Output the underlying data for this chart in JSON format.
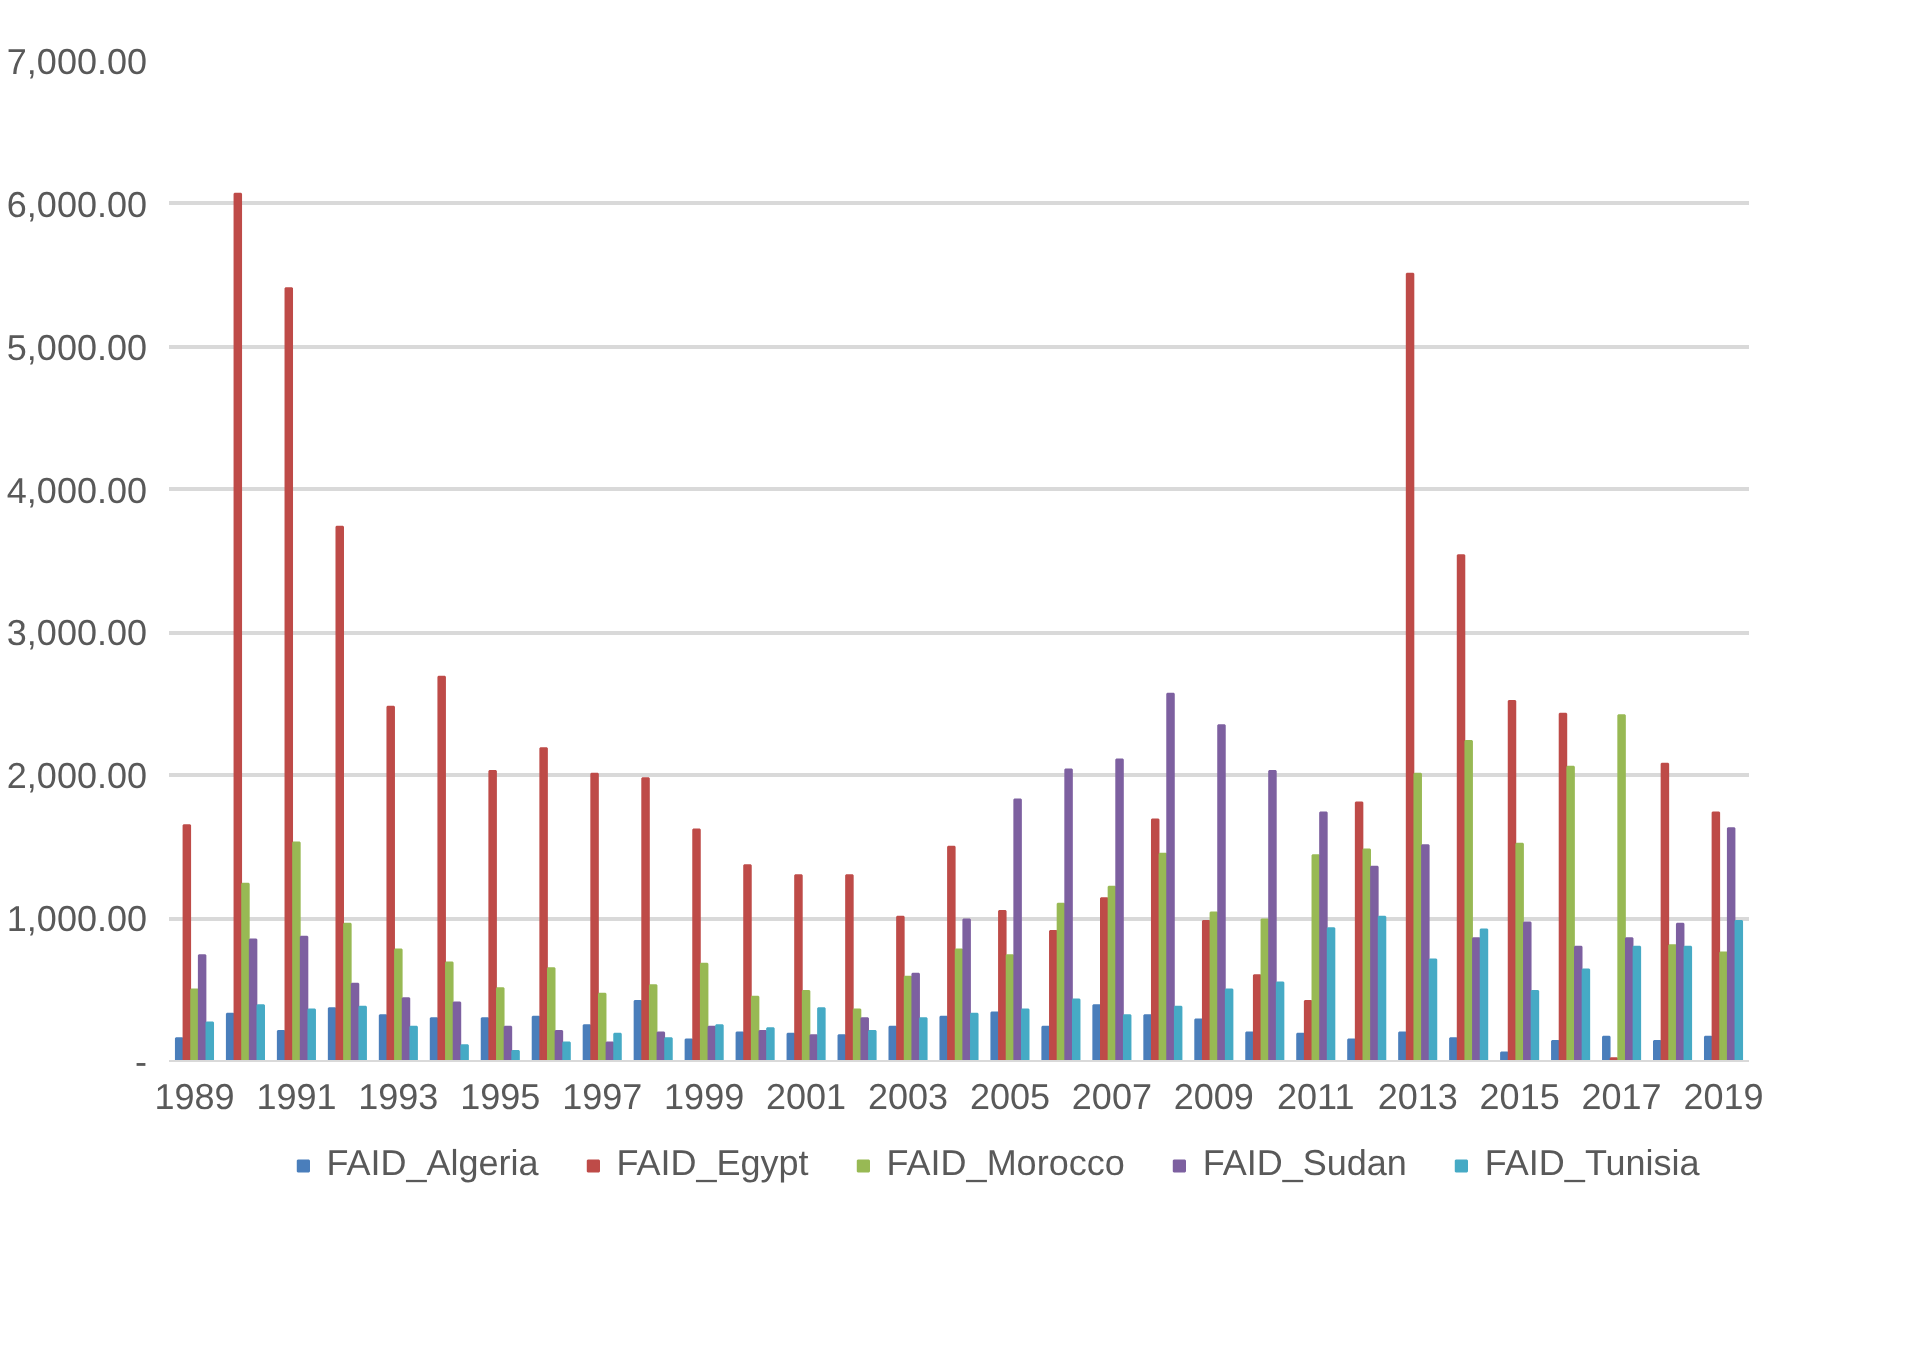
{
  "chart_data": {
    "type": "bar",
    "categories": [
      "1989",
      null,
      "1991",
      null,
      "1993",
      null,
      "1995",
      null,
      "1997",
      null,
      "1999",
      null,
      "2001",
      null,
      "2003",
      null,
      "2005",
      null,
      "2007",
      null,
      "2009",
      null,
      "2011",
      null,
      "2013",
      null,
      "2015",
      null,
      "2017",
      null,
      "2019"
    ],
    "series": [
      {
        "name": "FAID_Algeria",
        "color": "#4a7ebb",
        "values": [
          160,
          330,
          210,
          370,
          320,
          300,
          300,
          310,
          250,
          420,
          150,
          200,
          190,
          180,
          240,
          310,
          340,
          240,
          390,
          320,
          290,
          200,
          190,
          150,
          200,
          160,
          60,
          140,
          170,
          140,
          170
        ]
      },
      {
        "name": "FAID_Egypt",
        "color": "#be4b48",
        "values": [
          1650,
          6070,
          5410,
          3740,
          2480,
          2690,
          2030,
          2190,
          2010,
          1980,
          1620,
          1370,
          1300,
          1300,
          1010,
          1500,
          1050,
          910,
          1140,
          1690,
          980,
          600,
          420,
          1810,
          5510,
          3540,
          2520,
          2430,
          20,
          2080,
          1740
        ]
      },
      {
        "name": "FAID_Morocco",
        "color": "#98b954",
        "values": [
          500,
          1240,
          1530,
          960,
          780,
          690,
          510,
          650,
          470,
          530,
          680,
          450,
          490,
          360,
          590,
          780,
          740,
          1100,
          1220,
          1450,
          1040,
          990,
          1440,
          1480,
          2010,
          2240,
          1520,
          2060,
          2420,
          810,
          760
        ]
      },
      {
        "name": "FAID_Sudan",
        "color": "#7d60a0",
        "values": [
          740,
          850,
          870,
          540,
          440,
          410,
          240,
          210,
          130,
          200,
          240,
          210,
          180,
          300,
          610,
          990,
          1830,
          2040,
          2110,
          2570,
          2350,
          2030,
          1740,
          1360,
          1510,
          860,
          970,
          800,
          860,
          960,
          1630
        ]
      },
      {
        "name": "FAID_Tunisia",
        "color": "#46aac5",
        "values": [
          270,
          390,
          360,
          380,
          240,
          110,
          70,
          130,
          190,
          160,
          250,
          230,
          370,
          210,
          300,
          330,
          360,
          430,
          320,
          380,
          500,
          550,
          930,
          1010,
          710,
          920,
          490,
          640,
          800,
          800,
          980
        ]
      }
    ],
    "ylim": [
      0,
      7000
    ],
    "yticks": [
      {
        "value": 0,
        "label": "-"
      },
      {
        "value": 1000,
        "label": "1,000.00"
      },
      {
        "value": 2000,
        "label": "2,000.00"
      },
      {
        "value": 3000,
        "label": "3,000.00"
      },
      {
        "value": 4000,
        "label": "4,000.00"
      },
      {
        "value": 5000,
        "label": "5,000.00"
      },
      {
        "value": 6000,
        "label": "6,000.00"
      },
      {
        "value": 7000,
        "label": "7,000.00"
      }
    ],
    "grid": "y",
    "legend": "bottom"
  }
}
